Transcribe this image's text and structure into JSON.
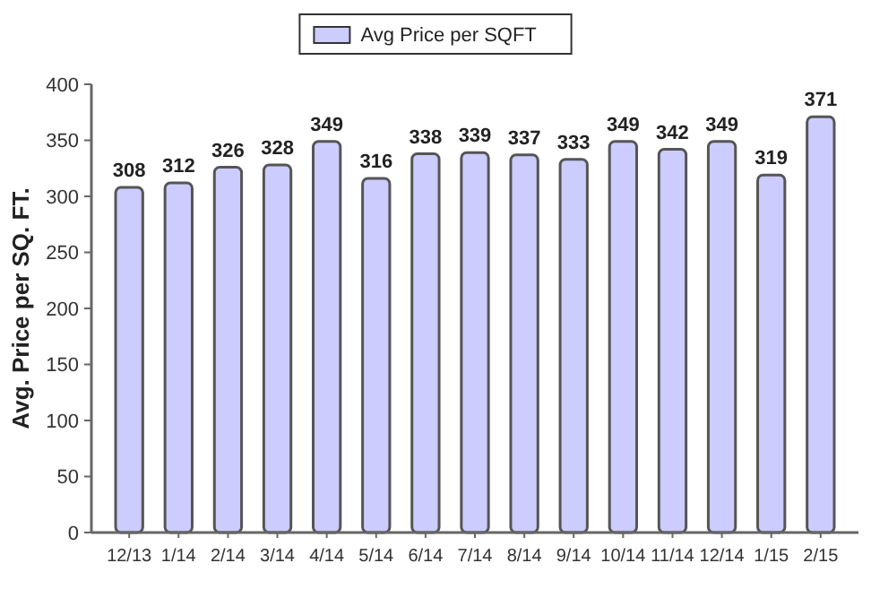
{
  "chart_data": {
    "type": "bar",
    "ylabel": "Avg. Price per SQ. FT.",
    "categories": [
      "12/13",
      "1/14",
      "2/14",
      "3/14",
      "4/14",
      "5/14",
      "6/14",
      "7/14",
      "8/14",
      "9/14",
      "10/14",
      "11/14",
      "12/14",
      "1/15",
      "2/15"
    ],
    "series": [
      {
        "name": "Avg Price per SQFT",
        "color": "#ccccff",
        "values": [
          308,
          312,
          326,
          328,
          349,
          316,
          338,
          339,
          337,
          333,
          349,
          342,
          349,
          319,
          371
        ]
      }
    ],
    "ylim": [
      0,
      400
    ],
    "yticks": [
      0,
      50,
      100,
      150,
      200,
      250,
      300,
      350,
      400
    ],
    "data_labels": true,
    "legend": "top",
    "grid": false
  }
}
